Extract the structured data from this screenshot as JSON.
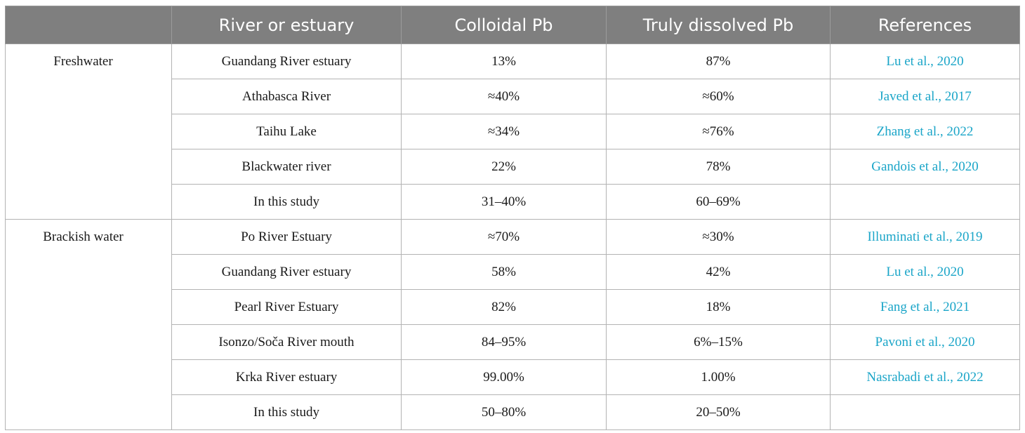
{
  "header": {
    "col0": "",
    "col1": "River or estuary",
    "col2": "Colloidal Pb",
    "col3": "Truly dissolved Pb",
    "col4": "References"
  },
  "groups": [
    {
      "label": "Freshwater",
      "rows": [
        {
          "river": "Guandang River estuary",
          "colloidal": "13%",
          "dissolved": "87%",
          "ref": "Lu et al., 2020"
        },
        {
          "river": "Athabasca River",
          "colloidal": "≈40%",
          "dissolved": "≈60%",
          "ref": "Javed et al., 2017"
        },
        {
          "river": "Taihu Lake",
          "colloidal": "≈34%",
          "dissolved": "≈76%",
          "ref": "Zhang et al., 2022"
        },
        {
          "river": "Blackwater river",
          "colloidal": "22%",
          "dissolved": "78%",
          "ref": "Gandois et al., 2020"
        },
        {
          "river": "In this study",
          "colloidal": "31–40%",
          "dissolved": "60–69%",
          "ref": ""
        }
      ]
    },
    {
      "label": "Brackish water",
      "rows": [
        {
          "river": "Po River Estuary",
          "colloidal": "≈70%",
          "dissolved": "≈30%",
          "ref": "Illuminati et al., 2019"
        },
        {
          "river": "Guandang River estuary",
          "colloidal": "58%",
          "dissolved": "42%",
          "ref": "Lu et al., 2020"
        },
        {
          "river": "Pearl River Estuary",
          "colloidal": "82%",
          "dissolved": "18%",
          "ref": "Fang et al., 2021"
        },
        {
          "river": "Isonzo/Soča River mouth",
          "colloidal": "84–95%",
          "dissolved": "6%–15%",
          "ref": "Pavoni et al., 2020"
        },
        {
          "river": "Krka River estuary",
          "colloidal": "99.00%",
          "dissolved": "1.00%",
          "ref": "Nasrabadi et al., 2022"
        },
        {
          "river": "In this study",
          "colloidal": "50–80%",
          "dissolved": "20–50%",
          "ref": ""
        }
      ]
    }
  ]
}
